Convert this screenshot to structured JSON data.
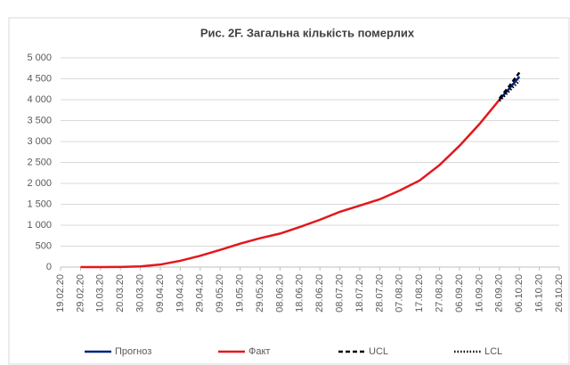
{
  "chart_data": {
    "type": "line",
    "title": "Рис. 2F. Загальна кількість померлих",
    "xlim": [
      "19.02.20",
      "26.10.20"
    ],
    "xticks": [
      "19.02.20",
      "29.02.20",
      "10.03.20",
      "20.03.20",
      "30.03.20",
      "09.04.20",
      "19.04.20",
      "29.04.20",
      "09.05.20",
      "19.05.20",
      "29.05.20",
      "08.06.20",
      "18.06.20",
      "28.06.20",
      "08.07.20",
      "18.07.20",
      "28.07.20",
      "07.08.20",
      "17.08.20",
      "27.08.20",
      "06.09.20",
      "16.09.20",
      "26.09.20",
      "06.10.20",
      "16.10.20",
      "26.10.20"
    ],
    "ylim": [
      0,
      5000
    ],
    "yticks": [
      0,
      500,
      {
        "value": 1000,
        "label": "1 000"
      },
      {
        "value": 1500,
        "label": "1 500"
      },
      {
        "value": 2000,
        "label": "2 000"
      },
      {
        "value": 2500,
        "label": "2 500"
      },
      {
        "value": 3000,
        "label": "3 000"
      },
      {
        "value": 3500,
        "label": "3 500"
      },
      {
        "value": 4000,
        "label": "4 000"
      },
      {
        "value": 4500,
        "label": "4 500"
      },
      {
        "value": 5000,
        "label": "5 000"
      }
    ],
    "grid": true,
    "legend": "bottom",
    "series": [
      {
        "name": "Прогноз",
        "color": "#002080",
        "dash": "solid",
        "x": [
          "26.09.20",
          "01.10.20",
          "06.10.20"
        ],
        "values": [
          4000,
          4270,
          4550
        ]
      },
      {
        "name": "Факт",
        "color": "#e3171c",
        "dash": "solid",
        "x": [
          "29.02.20",
          "10.03.20",
          "20.03.20",
          "30.03.20",
          "09.04.20",
          "19.04.20",
          "29.04.20",
          "09.05.20",
          "19.05.20",
          "29.05.20",
          "08.06.20",
          "18.06.20",
          "28.06.20",
          "08.07.20",
          "18.07.20",
          "28.07.20",
          "07.08.20",
          "17.08.20",
          "27.08.20",
          "06.09.20",
          "16.09.20",
          "26.09.20"
        ],
        "values": [
          0,
          0,
          3,
          15,
          60,
          150,
          270,
          410,
          560,
          690,
          800,
          960,
          1130,
          1320,
          1470,
          1620,
          1830,
          2070,
          2440,
          2900,
          3420,
          4000
        ]
      },
      {
        "name": "UCL",
        "color": "#000000",
        "dash": "dashed",
        "x": [
          "26.09.20",
          "01.10.20",
          "06.10.20"
        ],
        "values": [
          4030,
          4330,
          4650
        ]
      },
      {
        "name": "LCL",
        "color": "#000000",
        "dash": "dotted",
        "x": [
          "26.09.20",
          "01.10.20",
          "06.10.20"
        ],
        "values": [
          3970,
          4210,
          4450
        ]
      }
    ]
  }
}
